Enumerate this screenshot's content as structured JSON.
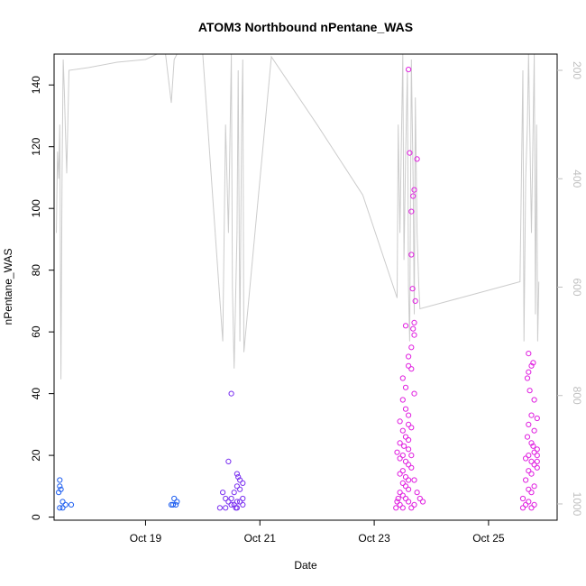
{
  "chart_data": {
    "type": "scatter",
    "title": "ATOM3 Northbound nPentane_WAS",
    "xlabel": "Date",
    "ylabel": "nPentane_WAS",
    "x_ticks": [
      "Oct 19",
      "Oct 21",
      "Oct 23",
      "Oct 25"
    ],
    "y_ticks": [
      "0",
      "20",
      "40",
      "60",
      "80",
      "100",
      "120",
      "140"
    ],
    "y2_ticks": [
      "200",
      "400",
      "600",
      "800",
      "1000"
    ],
    "x_range_days": [
      17.4,
      26.2
    ],
    "ylim": [
      -1,
      150
    ],
    "y2lim": [
      1030,
      170
    ],
    "grid": false,
    "colors": {
      "axis": "#000000",
      "secondary_axis": "#bfbfbf",
      "altitude_line": "#cccccc",
      "points_early": "#1f5ff0",
      "points_mid": "#7a30f0",
      "points_late": "#e020e0"
    },
    "series": [
      {
        "points": [
          [
            17.5,
            12
          ],
          [
            17.5,
            10
          ],
          [
            17.52,
            9
          ],
          [
            17.48,
            8
          ],
          [
            17.55,
            5
          ],
          [
            17.6,
            4
          ],
          [
            17.7,
            4
          ],
          [
            17.5,
            3
          ],
          [
            17.55,
            3
          ],
          [
            19.45,
            4
          ],
          [
            19.5,
            6
          ],
          [
            19.55,
            5
          ],
          [
            19.48,
            4
          ],
          [
            19.53,
            4
          ],
          [
            20.5,
            40
          ],
          [
            20.45,
            18
          ],
          [
            20.35,
            8
          ],
          [
            20.5,
            6
          ],
          [
            20.6,
            14
          ],
          [
            20.62,
            13
          ],
          [
            20.65,
            12
          ],
          [
            20.7,
            11
          ],
          [
            20.6,
            10
          ],
          [
            20.65,
            9
          ],
          [
            20.55,
            8
          ],
          [
            20.4,
            6
          ],
          [
            20.45,
            5
          ],
          [
            20.5,
            4
          ],
          [
            20.55,
            4
          ],
          [
            20.6,
            3
          ],
          [
            20.3,
            3
          ],
          [
            20.4,
            3
          ],
          [
            20.7,
            6
          ],
          [
            20.65,
            5
          ],
          [
            20.7,
            4
          ],
          [
            20.6,
            5
          ],
          [
            20.58,
            3
          ],
          [
            23.6,
            145
          ],
          [
            23.62,
            118
          ],
          [
            23.75,
            116
          ],
          [
            23.7,
            106
          ],
          [
            23.68,
            104
          ],
          [
            23.65,
            99
          ],
          [
            23.65,
            85
          ],
          [
            23.67,
            74
          ],
          [
            23.72,
            70
          ],
          [
            23.7,
            63
          ],
          [
            23.68,
            61
          ],
          [
            23.55,
            62
          ],
          [
            23.7,
            59
          ],
          [
            23.65,
            55
          ],
          [
            23.6,
            52
          ],
          [
            23.6,
            49
          ],
          [
            23.65,
            48
          ],
          [
            23.5,
            45
          ],
          [
            23.55,
            42
          ],
          [
            23.7,
            40
          ],
          [
            23.5,
            38
          ],
          [
            23.55,
            35
          ],
          [
            23.6,
            33
          ],
          [
            23.45,
            31
          ],
          [
            23.6,
            30
          ],
          [
            23.65,
            29
          ],
          [
            23.5,
            28
          ],
          [
            23.55,
            26
          ],
          [
            23.6,
            25
          ],
          [
            23.45,
            24
          ],
          [
            23.52,
            23
          ],
          [
            23.6,
            22
          ],
          [
            23.4,
            21
          ],
          [
            23.5,
            20
          ],
          [
            23.45,
            19
          ],
          [
            23.55,
            18
          ],
          [
            23.6,
            17
          ],
          [
            23.65,
            16
          ],
          [
            23.5,
            15
          ],
          [
            23.45,
            14
          ],
          [
            23.55,
            13
          ],
          [
            23.6,
            12
          ],
          [
            23.5,
            11
          ],
          [
            23.55,
            10
          ],
          [
            23.6,
            9
          ],
          [
            23.45,
            8
          ],
          [
            23.5,
            7
          ],
          [
            23.55,
            6
          ],
          [
            23.42,
            6
          ],
          [
            23.4,
            5
          ],
          [
            23.45,
            4
          ],
          [
            23.5,
            3
          ],
          [
            23.38,
            3
          ],
          [
            23.6,
            5
          ],
          [
            23.7,
            4
          ],
          [
            23.8,
            6
          ],
          [
            23.85,
            5
          ],
          [
            23.65,
            3
          ],
          [
            23.75,
            8
          ],
          [
            23.7,
            12
          ],
          [
            23.65,
            20
          ],
          [
            25.7,
            53
          ],
          [
            25.78,
            50
          ],
          [
            25.75,
            49
          ],
          [
            25.7,
            47
          ],
          [
            25.68,
            45
          ],
          [
            25.72,
            41
          ],
          [
            25.8,
            38
          ],
          [
            25.75,
            33
          ],
          [
            25.85,
            32
          ],
          [
            25.7,
            30
          ],
          [
            25.8,
            28
          ],
          [
            25.68,
            26
          ],
          [
            25.75,
            24
          ],
          [
            25.78,
            23
          ],
          [
            25.85,
            22
          ],
          [
            25.8,
            21
          ],
          [
            25.7,
            20
          ],
          [
            25.65,
            19
          ],
          [
            25.75,
            18
          ],
          [
            25.8,
            17
          ],
          [
            25.85,
            16
          ],
          [
            25.7,
            15
          ],
          [
            25.75,
            14
          ],
          [
            25.65,
            12
          ],
          [
            25.8,
            10
          ],
          [
            25.7,
            9
          ],
          [
            25.75,
            8
          ],
          [
            25.6,
            6
          ],
          [
            25.7,
            5
          ],
          [
            25.65,
            4
          ],
          [
            25.8,
            4
          ],
          [
            25.6,
            3
          ],
          [
            25.75,
            3
          ],
          [
            25.85,
            20
          ],
          [
            25.85,
            18
          ]
        ]
      }
    ],
    "altitude_line": [
      [
        17.44,
        500
      ],
      [
        17.46,
        350
      ],
      [
        17.48,
        400
      ],
      [
        17.5,
        300
      ],
      [
        17.52,
        770
      ],
      [
        17.54,
        380
      ],
      [
        17.56,
        180
      ],
      [
        17.58,
        240
      ],
      [
        17.6,
        320
      ],
      [
        17.62,
        390
      ],
      [
        17.64,
        300
      ],
      [
        17.66,
        200
      ],
      [
        18.0,
        195
      ],
      [
        18.5,
        185
      ],
      [
        19.0,
        180
      ],
      [
        19.2,
        170
      ],
      [
        19.35,
        170
      ],
      [
        19.45,
        260
      ],
      [
        19.5,
        180
      ],
      [
        19.55,
        170
      ],
      [
        20.0,
        130
      ],
      [
        20.35,
        700
      ],
      [
        20.4,
        300
      ],
      [
        20.45,
        500
      ],
      [
        20.5,
        150
      ],
      [
        20.52,
        600
      ],
      [
        20.55,
        750
      ],
      [
        20.6,
        500
      ],
      [
        20.62,
        200
      ],
      [
        20.65,
        700
      ],
      [
        20.68,
        300
      ],
      [
        20.7,
        180
      ],
      [
        20.72,
        720
      ],
      [
        21.2,
        175
      ],
      [
        22.0,
        300
      ],
      [
        22.8,
        430
      ],
      [
        23.4,
        620
      ],
      [
        23.42,
        300
      ],
      [
        23.45,
        500
      ],
      [
        23.5,
        150
      ],
      [
        23.52,
        550
      ],
      [
        23.55,
        350
      ],
      [
        23.58,
        200
      ],
      [
        23.6,
        600
      ],
      [
        23.62,
        700
      ],
      [
        23.65,
        180
      ],
      [
        23.68,
        400
      ],
      [
        23.7,
        650
      ],
      [
        23.72,
        250
      ],
      [
        23.75,
        500
      ],
      [
        23.78,
        600
      ],
      [
        23.8,
        640
      ],
      [
        24.5,
        620
      ],
      [
        25.2,
        600
      ],
      [
        25.55,
        590
      ],
      [
        25.6,
        200
      ],
      [
        25.62,
        700
      ],
      [
        25.65,
        400
      ],
      [
        25.68,
        300
      ],
      [
        25.7,
        170
      ],
      [
        25.75,
        500
      ],
      [
        25.8,
        170
      ],
      [
        25.82,
        650
      ],
      [
        25.84,
        300
      ],
      [
        25.86,
        700
      ],
      [
        25.88,
        590
      ]
    ]
  }
}
